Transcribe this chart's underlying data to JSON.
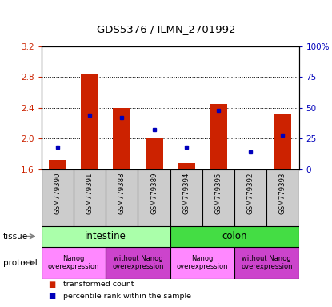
{
  "title": "GDS5376 / ILMN_2701992",
  "samples": [
    "GSM779390",
    "GSM779391",
    "GSM779388",
    "GSM779389",
    "GSM779394",
    "GSM779395",
    "GSM779392",
    "GSM779393"
  ],
  "bar_values": [
    1.72,
    2.84,
    2.4,
    2.01,
    1.68,
    2.45,
    1.61,
    2.31
  ],
  "bar_base": 1.6,
  "percentile_values": [
    18,
    44,
    42,
    32,
    18,
    48,
    14,
    28
  ],
  "ylim_left": [
    1.6,
    3.2
  ],
  "ylim_right": [
    0,
    100
  ],
  "yticks_left": [
    1.6,
    2.0,
    2.4,
    2.8,
    3.2
  ],
  "ytick_labels_left": [
    "1.6",
    "2.0",
    "2.4",
    "2.8",
    "3.2"
  ],
  "yticks_right": [
    0,
    25,
    50,
    75,
    100
  ],
  "ytick_labels_right": [
    "0",
    "25",
    "50",
    "75",
    "100%"
  ],
  "bar_color": "#cc2200",
  "dot_color": "#0000bb",
  "tissue_groups": [
    {
      "label": "intestine",
      "start": 0,
      "end": 4,
      "color": "#aaffaa"
    },
    {
      "label": "colon",
      "start": 4,
      "end": 8,
      "color": "#44dd44"
    }
  ],
  "protocol_groups": [
    {
      "label": "Nanog\noverexpression",
      "start": 0,
      "end": 2,
      "color": "#ff88ff"
    },
    {
      "label": "without Nanog\noverexpression",
      "start": 2,
      "end": 4,
      "color": "#cc44cc"
    },
    {
      "label": "Nanog\noverexpression",
      "start": 4,
      "end": 6,
      "color": "#ff88ff"
    },
    {
      "label": "without Nanog\noverexpression",
      "start": 6,
      "end": 8,
      "color": "#cc44cc"
    }
  ],
  "tissue_label": "tissue",
  "protocol_label": "protocol",
  "legend_items": [
    {
      "color": "#cc2200",
      "label": "transformed count"
    },
    {
      "color": "#0000bb",
      "label": "percentile rank within the sample"
    }
  ],
  "grid_dotted": [
    2.0,
    2.4,
    2.8
  ],
  "bar_width": 0.55,
  "sample_box_color": "#cccccc",
  "fig_bg": "#ffffff"
}
